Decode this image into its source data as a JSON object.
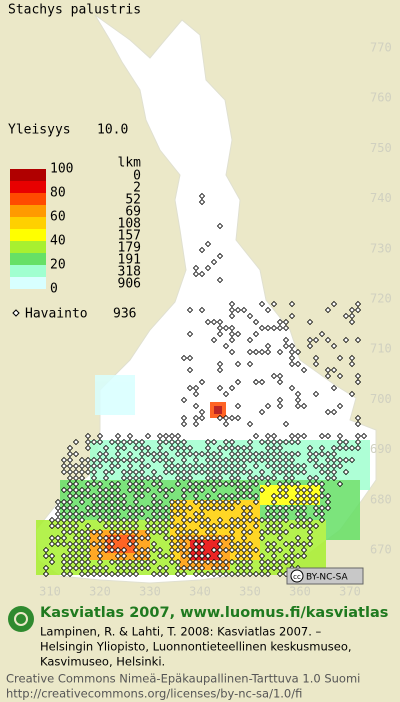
{
  "title": "Stachys palustris",
  "frequency": {
    "label": "Yleisyys",
    "value": "10.0"
  },
  "legend": {
    "scale_labels": [
      100,
      80,
      60,
      40,
      20,
      0
    ],
    "count_header": "lkm",
    "counts": [
      0,
      2,
      52,
      69,
      108,
      157,
      179,
      191,
      318,
      906
    ],
    "colors": [
      "#b00000",
      "#e80000",
      "#ff4a00",
      "#ff9a00",
      "#ffd000",
      "#ffff00",
      "#a8f030",
      "#66e066",
      "#a0ffd0",
      "#d8ffff"
    ]
  },
  "observations": {
    "label": "Havainto",
    "value": 936
  },
  "grid": {
    "northing": [
      770,
      760,
      750,
      740,
      730,
      720,
      710,
      700,
      690,
      680,
      670
    ],
    "easting": [
      310,
      320,
      330,
      340,
      350,
      360,
      370
    ]
  },
  "license_badge": {
    "icon": "cc",
    "text": "BY-NC-SA"
  },
  "footer": {
    "heading": "Kasviatlas 2007, www.luomus.fi/kasviatlas",
    "citation": [
      "Lampinen, R. & Lahti, T. 2008: Kasviatlas 2007. –",
      "Helsingin Yliopisto, Luonnontieteellinen keskusmuseo,",
      "Kasvimuseo, Helsinki."
    ],
    "license": [
      "Creative Commons Nimeä-Epäkaupallinen-Tarttuva 1.0 Suomi",
      "http://creativecommons.org/licenses/by-nc-sa/1.0/fi"
    ]
  }
}
